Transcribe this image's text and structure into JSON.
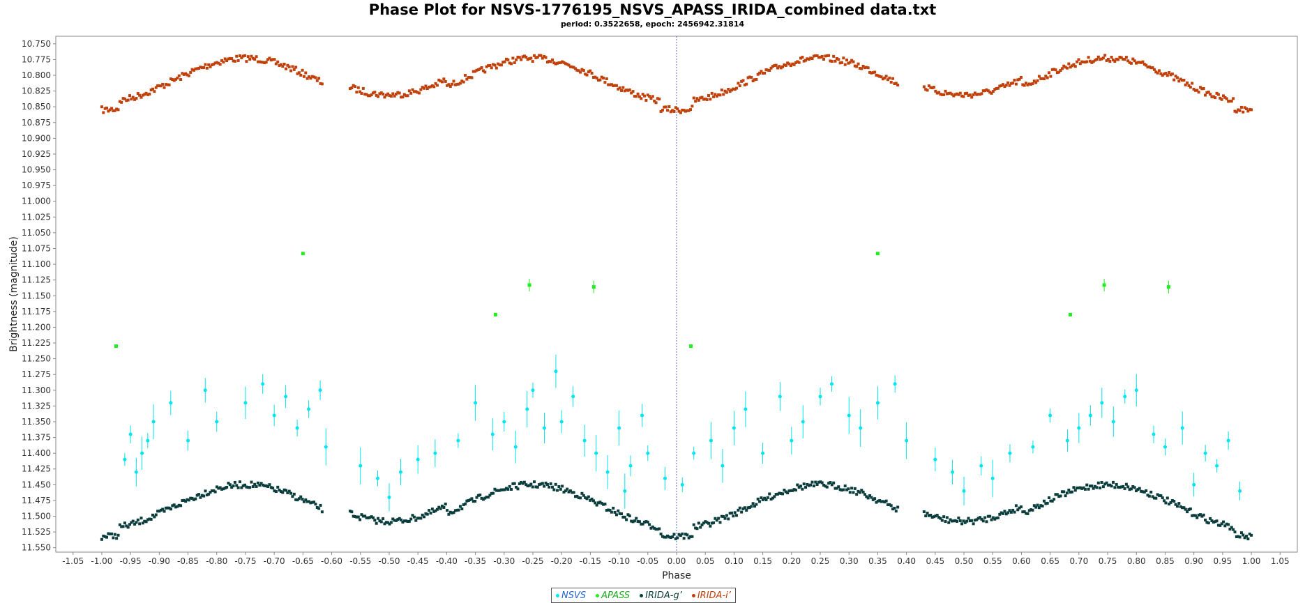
{
  "chart_data": {
    "type": "scatter",
    "title": "Phase Plot for NSVS-1776195_NSVS_APASS_IRIDA_combined data.txt",
    "subtitle": "period: 0.3522658, epoch: 2456942.31814",
    "xlabel": "Phase",
    "ylabel": "Brightness (magnitude)",
    "xlim": [
      -1.08,
      1.08
    ],
    "ylim": [
      11.557,
      10.738
    ],
    "y_inverted": true,
    "x_ticks": [
      "-1.05",
      "-1.00",
      "-0.95",
      "-0.90",
      "-0.85",
      "-0.80",
      "-0.75",
      "-0.70",
      "-0.65",
      "-0.60",
      "-0.55",
      "-0.50",
      "-0.45",
      "-0.40",
      "-0.35",
      "-0.30",
      "-0.25",
      "-0.20",
      "-0.15",
      "-0.10",
      "-0.05",
      "0.00",
      "0.05",
      "0.10",
      "0.15",
      "0.20",
      "0.25",
      "0.30",
      "0.35",
      "0.40",
      "0.45",
      "0.50",
      "0.55",
      "0.60",
      "0.65",
      "0.70",
      "0.75",
      "0.80",
      "0.85",
      "0.90",
      "0.95",
      "1.00",
      "1.05"
    ],
    "y_ticks": [
      "10.750",
      "10.775",
      "10.800",
      "10.825",
      "10.850",
      "10.875",
      "10.900",
      "10.925",
      "10.950",
      "10.975",
      "11.000",
      "11.025",
      "11.050",
      "11.075",
      "11.100",
      "11.125",
      "11.150",
      "11.175",
      "11.200",
      "11.225",
      "11.250",
      "11.275",
      "11.300",
      "11.325",
      "11.350",
      "11.375",
      "11.400",
      "11.425",
      "11.450",
      "11.475",
      "11.500",
      "11.525",
      "11.550"
    ],
    "grid": false,
    "legend_position": "bottom-center",
    "series": [
      {
        "name": "NSVS",
        "color": "#00e5ee",
        "marker": "circle",
        "error_bars": true,
        "points": [
          [
            -0.96,
            11.41
          ],
          [
            -0.95,
            11.37
          ],
          [
            -0.94,
            11.43
          ],
          [
            -0.93,
            11.4
          ],
          [
            -0.92,
            11.38
          ],
          [
            -0.91,
            11.35
          ],
          [
            -0.88,
            11.32
          ],
          [
            -0.85,
            11.38
          ],
          [
            -0.82,
            11.3
          ],
          [
            -0.8,
            11.35
          ],
          [
            -0.75,
            11.32
          ],
          [
            -0.72,
            11.29
          ],
          [
            -0.7,
            11.34
          ],
          [
            -0.68,
            11.31
          ],
          [
            -0.66,
            11.36
          ],
          [
            -0.64,
            11.33
          ],
          [
            -0.62,
            11.3
          ],
          [
            -0.61,
            11.39
          ],
          [
            -0.55,
            11.42
          ],
          [
            -0.52,
            11.44
          ],
          [
            -0.5,
            11.47
          ],
          [
            -0.48,
            11.43
          ],
          [
            -0.45,
            11.41
          ],
          [
            -0.42,
            11.4
          ],
          [
            -0.38,
            11.38
          ],
          [
            -0.35,
            11.32
          ],
          [
            -0.32,
            11.37
          ],
          [
            -0.3,
            11.35
          ],
          [
            -0.28,
            11.39
          ],
          [
            -0.26,
            11.33
          ],
          [
            -0.25,
            11.3
          ],
          [
            -0.23,
            11.36
          ],
          [
            -0.21,
            11.27
          ],
          [
            -0.2,
            11.35
          ],
          [
            -0.18,
            11.31
          ],
          [
            -0.16,
            11.38
          ],
          [
            -0.14,
            11.4
          ],
          [
            -0.12,
            11.43
          ],
          [
            -0.1,
            11.36
          ],
          [
            -0.09,
            11.46
          ],
          [
            -0.08,
            11.42
          ],
          [
            -0.06,
            11.34
          ],
          [
            -0.05,
            11.4
          ],
          [
            -0.02,
            11.44
          ],
          [
            0.01,
            11.45
          ],
          [
            0.03,
            11.4
          ],
          [
            0.06,
            11.38
          ],
          [
            0.08,
            11.42
          ],
          [
            0.1,
            11.36
          ],
          [
            0.12,
            11.33
          ],
          [
            0.15,
            11.4
          ],
          [
            0.18,
            11.31
          ],
          [
            0.2,
            11.38
          ],
          [
            0.22,
            11.35
          ],
          [
            0.25,
            11.31
          ],
          [
            0.27,
            11.29
          ],
          [
            0.3,
            11.34
          ],
          [
            0.32,
            11.36
          ],
          [
            0.35,
            11.32
          ],
          [
            0.38,
            11.29
          ],
          [
            0.4,
            11.38
          ],
          [
            0.45,
            11.41
          ],
          [
            0.48,
            11.43
          ],
          [
            0.5,
            11.46
          ],
          [
            0.53,
            11.42
          ],
          [
            0.55,
            11.44
          ],
          [
            0.58,
            11.4
          ],
          [
            0.62,
            11.39
          ],
          [
            0.65,
            11.34
          ],
          [
            0.68,
            11.38
          ],
          [
            0.7,
            11.36
          ],
          [
            0.72,
            11.34
          ],
          [
            0.74,
            11.32
          ],
          [
            0.76,
            11.35
          ],
          [
            0.78,
            11.31
          ],
          [
            0.8,
            11.3
          ],
          [
            0.83,
            11.37
          ],
          [
            0.85,
            11.39
          ],
          [
            0.88,
            11.36
          ],
          [
            0.9,
            11.45
          ],
          [
            0.92,
            11.4
          ],
          [
            0.94,
            11.42
          ],
          [
            0.96,
            11.38
          ],
          [
            0.98,
            11.46
          ]
        ]
      },
      {
        "name": "APASS",
        "color": "#22ee22",
        "marker": "square",
        "error_bars": true,
        "points": [
          [
            -0.975,
            11.23
          ],
          [
            -0.65,
            11.083
          ],
          [
            -0.315,
            11.18
          ],
          [
            -0.256,
            11.133
          ],
          [
            -0.144,
            11.136
          ],
          [
            0.025,
            11.23
          ],
          [
            0.35,
            11.083
          ],
          [
            0.685,
            11.18
          ],
          [
            0.744,
            11.133
          ],
          [
            0.856,
            11.136
          ]
        ]
      },
      {
        "name": "IRIDA-g'",
        "color": "#0b3d3d",
        "marker": "square",
        "error_bars": true,
        "model": {
          "mean": 11.485,
          "amp": 0.035,
          "phase_min_mag": 11.55,
          "phase_max_mag": 11.42
        }
      },
      {
        "name": "IRIDA-i'",
        "color": "#c0400a",
        "marker": "square",
        "error_bars": true,
        "model": {
          "mean": 10.808,
          "amp": 0.035,
          "phase_min_mag": 10.87,
          "phase_max_mag": 10.745
        }
      }
    ]
  },
  "legend": {
    "items": [
      {
        "label": "NSVS",
        "color": "#00e5ee",
        "text_color": "#2266cc"
      },
      {
        "label": "APASS",
        "color": "#22ee22",
        "text_color": "#22aa22"
      },
      {
        "label": "IRIDA-g’",
        "color": "#0b3d3d",
        "text_color": "#0b3d3d"
      },
      {
        "label": "IRIDA-i’",
        "color": "#c0400a",
        "text_color": "#c0400a"
      }
    ]
  }
}
